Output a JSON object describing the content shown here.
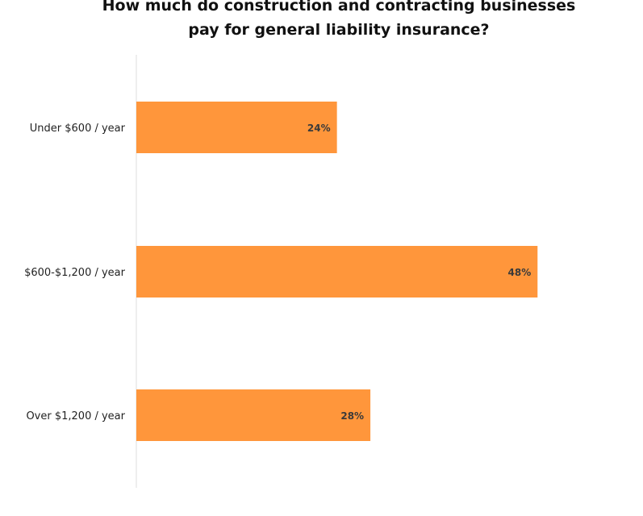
{
  "chart_data": {
    "type": "bar",
    "orientation": "horizontal",
    "title": "How much do construction and contracting businesses\npay for general liability insurance?",
    "categories": [
      "Under $600 / year",
      "$600-$1,200 / year",
      "Over $1,200 / year"
    ],
    "values": [
      24,
      48,
      28
    ],
    "value_labels": [
      "24%",
      "48%",
      "28%"
    ],
    "xlim": [
      0,
      50
    ],
    "grid": false,
    "legend": "none",
    "bar_color": "#FF963B",
    "axis_color": "#DDDDDD"
  }
}
